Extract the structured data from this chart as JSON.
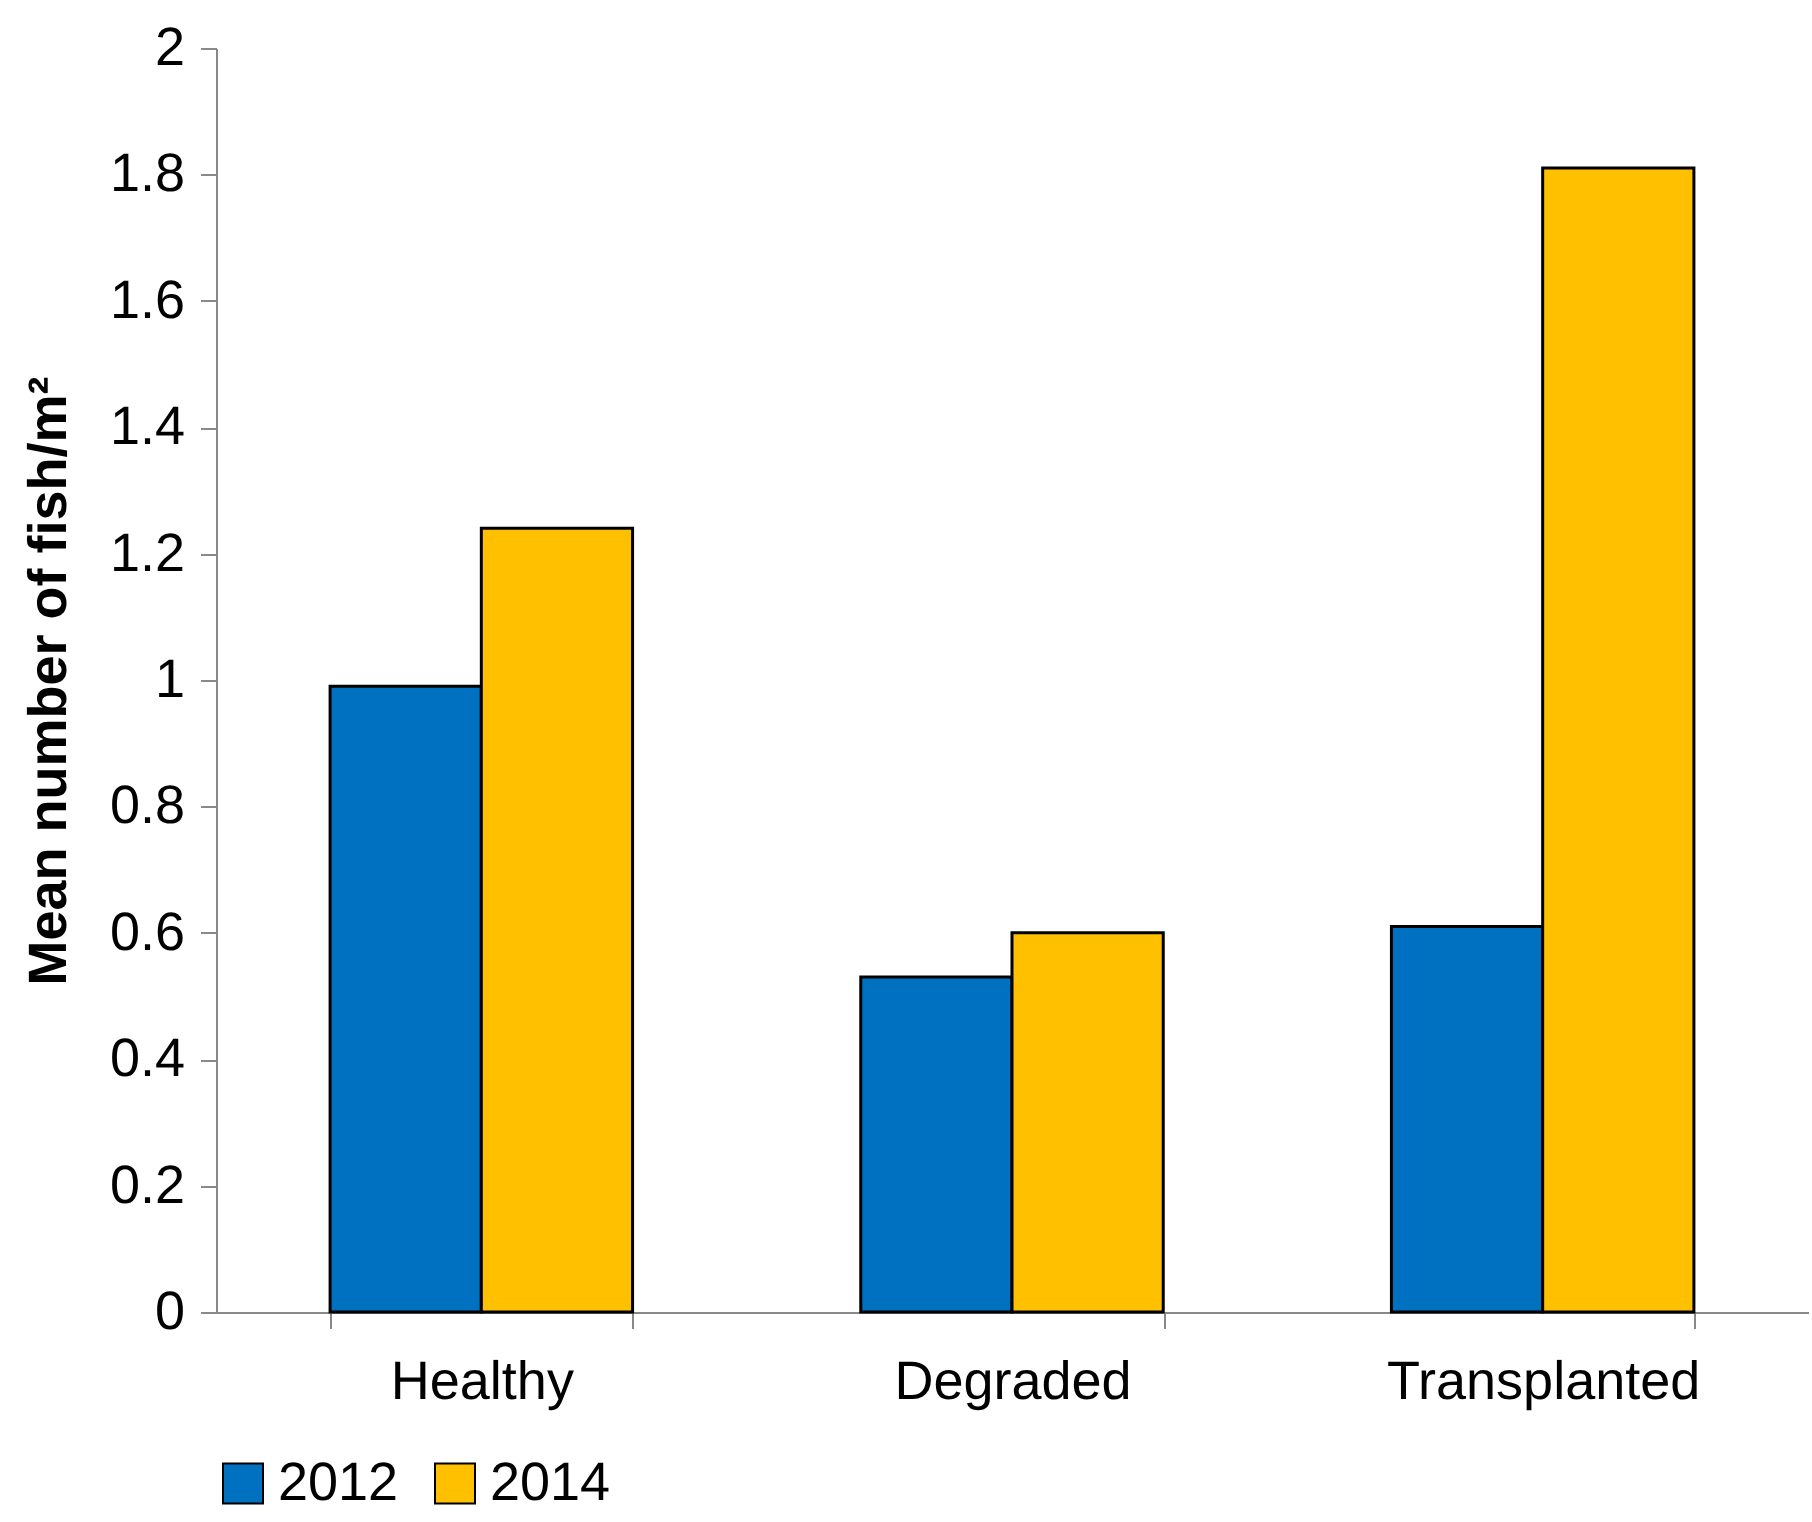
{
  "chart_data": {
    "type": "bar",
    "ylabel": "Mean number of fish/m²",
    "categories": [
      "Healthy",
      "Degraded",
      "Transplanted"
    ],
    "series": [
      {
        "name": "2012",
        "color": "#0070c0",
        "values": [
          0.99,
          0.53,
          0.61
        ]
      },
      {
        "name": "2014",
        "color": "#ffc000",
        "values": [
          1.24,
          0.6,
          1.81
        ]
      }
    ],
    "ylim": [
      0,
      2
    ],
    "yticks": [
      0,
      0.2,
      0.4,
      0.6,
      0.8,
      1,
      1.2,
      1.4,
      1.6,
      1.8,
      2
    ],
    "grid": false,
    "legend": "bottom"
  }
}
